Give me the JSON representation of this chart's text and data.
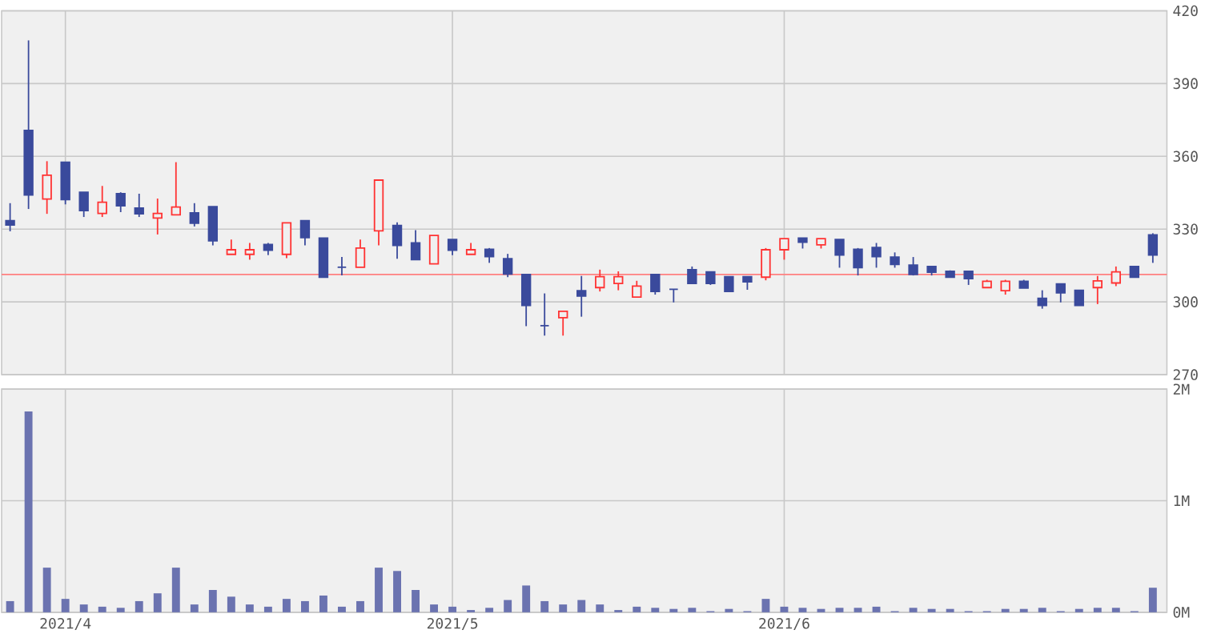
{
  "chart_data": [
    {
      "type": "candlestick",
      "categories": [
        null,
        null,
        null,
        "2021/4",
        null,
        null,
        null,
        null,
        null,
        null,
        null,
        null,
        null,
        null,
        null,
        null,
        null,
        null,
        null,
        null,
        null,
        null,
        null,
        null,
        "2021/5",
        null,
        null,
        null,
        null,
        null,
        null,
        null,
        null,
        null,
        null,
        null,
        null,
        null,
        null,
        null,
        null,
        null,
        "2021/6",
        null,
        null,
        null,
        null,
        null,
        null,
        null,
        null,
        null,
        null,
        null,
        null,
        null,
        null,
        null,
        null,
        null,
        null,
        null,
        null
      ],
      "ohlc": [
        [
          333.5,
          340.7,
          329.1,
          331.7
        ],
        [
          370.7,
          407.8,
          338.3,
          344.1
        ],
        [
          342.4,
          358,
          336.3,
          352.2
        ],
        [
          357.6,
          357.6,
          340.2,
          342.2
        ],
        [
          345.2,
          345.2,
          335,
          337.6
        ],
        [
          336.5,
          347.8,
          335,
          341.1
        ],
        [
          344.6,
          345.2,
          337,
          339.6
        ],
        [
          338.7,
          344.6,
          335,
          336.3
        ],
        [
          334.6,
          342.6,
          327.8,
          336.5
        ],
        [
          335.9,
          357.6,
          335.9,
          339.1
        ],
        [
          336.7,
          340.7,
          331.1,
          332.4
        ],
        [
          339.3,
          339.3,
          323.3,
          325.2
        ],
        [
          319.6,
          325.7,
          319.6,
          321.5
        ],
        [
          319.6,
          324.3,
          317.4,
          321.5
        ],
        [
          323.7,
          324.3,
          319.3,
          321.3
        ],
        [
          319.6,
          332.6,
          318,
          332.6
        ],
        [
          333.5,
          333.5,
          323.3,
          326.5
        ],
        [
          326.3,
          326.3,
          310.2,
          310.2
        ],
        [
          314.3,
          318.5,
          310.9,
          314.3
        ],
        [
          314.3,
          325.7,
          314.3,
          322.2
        ],
        [
          329.3,
          350.2,
          323.3,
          350.2
        ],
        [
          331.5,
          332.8,
          317.8,
          323.3
        ],
        [
          324.3,
          329.6,
          317.4,
          317.4
        ],
        [
          315.7,
          327.4,
          315.7,
          327.4
        ],
        [
          325.7,
          325.7,
          319.3,
          321.3
        ],
        [
          319.6,
          324.3,
          319.6,
          321.5
        ],
        [
          321.7,
          322.2,
          316.1,
          318.7
        ],
        [
          317.8,
          319.8,
          310.2,
          311.5
        ],
        [
          311.3,
          311.3,
          290,
          298.5
        ],
        [
          290.2,
          303.5,
          286.1,
          290.2
        ],
        [
          293.5,
          296.1,
          286.1,
          296.1
        ],
        [
          304.6,
          310.7,
          293.9,
          302.4
        ],
        [
          305.9,
          313.3,
          304.3,
          310.4
        ],
        [
          307.6,
          312.6,
          304.8,
          310.4
        ],
        [
          302,
          308.7,
          302,
          306.5
        ],
        [
          311.3,
          311.3,
          303,
          304.3
        ],
        [
          305.2,
          305.2,
          299.8,
          305.2
        ],
        [
          313.3,
          314.6,
          307.6,
          307.6
        ],
        [
          312.4,
          312.4,
          307,
          307.6
        ],
        [
          310.4,
          310.4,
          304.3,
          304.3
        ],
        [
          310.4,
          310.4,
          305,
          308.3
        ],
        [
          310.2,
          322.2,
          308.9,
          321.5
        ],
        [
          321.5,
          326.1,
          317.4,
          326.1
        ],
        [
          326.3,
          326.3,
          322,
          324.6
        ],
        [
          323.5,
          326.1,
          322,
          326.1
        ],
        [
          325.7,
          325.7,
          314.1,
          319.3
        ],
        [
          321.7,
          322.2,
          310.9,
          314.1
        ],
        [
          322.4,
          324.3,
          314.1,
          318.7
        ],
        [
          318.5,
          320.4,
          314.1,
          315.4
        ],
        [
          315.2,
          318.5,
          310.9,
          311.3
        ],
        [
          314.6,
          314.6,
          310.9,
          312.2
        ],
        [
          312.6,
          313,
          310.2,
          310.2
        ],
        [
          312.6,
          312.6,
          307,
          309.6
        ],
        [
          305.9,
          309.1,
          305.9,
          308.5
        ],
        [
          304.6,
          309.1,
          303,
          308.5
        ],
        [
          308.5,
          309.1,
          305.7,
          305.7
        ],
        [
          301.5,
          304.8,
          297.2,
          298.5
        ],
        [
          307.4,
          307.4,
          299.8,
          303.7
        ],
        [
          304.8,
          304.8,
          298.5,
          298.5
        ],
        [
          305.9,
          310.7,
          299.1,
          308.7
        ],
        [
          307.8,
          314.6,
          306.5,
          312.4
        ],
        [
          314.6,
          314.6,
          310.2,
          310.2
        ],
        [
          327.6,
          328.3,
          316.1,
          319.3
        ]
      ],
      "colors": [
        "#3a4a9c",
        "#3a4a9c",
        "#ff3333",
        "#3a4a9c",
        "#3a4a9c",
        "#ff3333",
        "#3a4a9c",
        "#3a4a9c",
        "#ff3333",
        "#ff3333",
        "#3a4a9c",
        "#3a4a9c",
        "#ff3333",
        "#ff3333",
        "#3a4a9c",
        "#ff3333",
        "#3a4a9c",
        "#3a4a9c",
        "#3a4a9c",
        "#ff3333",
        "#ff3333",
        "#3a4a9c",
        "#3a4a9c",
        "#ff3333",
        "#3a4a9c",
        "#ff3333",
        "#3a4a9c",
        "#3a4a9c",
        "#3a4a9c",
        "#3a4a9c",
        "#ff3333",
        "#3a4a9c",
        "#ff3333",
        "#ff3333",
        "#ff3333",
        "#3a4a9c",
        "#3a4a9c",
        "#3a4a9c",
        "#3a4a9c",
        "#3a4a9c",
        "#3a4a9c",
        "#ff3333",
        "#ff3333",
        "#3a4a9c",
        "#ff3333",
        "#3a4a9c",
        "#3a4a9c",
        "#3a4a9c",
        "#3a4a9c",
        "#3a4a9c",
        "#3a4a9c",
        "#3a4a9c",
        "#3a4a9c",
        "#ff3333",
        "#ff3333",
        "#3a4a9c",
        "#3a4a9c",
        "#3a4a9c",
        "#3a4a9c",
        "#ff3333",
        "#ff3333",
        "#3a4a9c",
        "#3a4a9c"
      ],
      "ylim": [
        270,
        420
      ],
      "yticks": [
        270,
        300,
        330,
        360,
        390,
        420
      ],
      "grid": true,
      "tick_labels": "y",
      "ref_lines": [
        {
          "axis": "y",
          "value": 311.3,
          "color": "#ff8080"
        }
      ]
    },
    {
      "type": "bar",
      "categories": [
        null,
        null,
        null,
        "2021/4",
        null,
        null,
        null,
        null,
        null,
        null,
        null,
        null,
        null,
        null,
        null,
        null,
        null,
        null,
        null,
        null,
        null,
        null,
        null,
        null,
        "2021/5",
        null,
        null,
        null,
        null,
        null,
        null,
        null,
        null,
        null,
        null,
        null,
        null,
        null,
        null,
        null,
        null,
        null,
        "2021/6",
        null,
        null,
        null,
        null,
        null,
        null,
        null,
        null,
        null,
        null,
        null,
        null,
        null,
        null,
        null,
        null,
        null,
        null,
        null,
        null
      ],
      "values": [
        0.1,
        1.8,
        0.4,
        0.12,
        0.07,
        0.05,
        0.04,
        0.1,
        0.17,
        0.4,
        0.07,
        0.2,
        0.14,
        0.07,
        0.05,
        0.12,
        0.1,
        0.15,
        0.05,
        0.1,
        0.4,
        0.37,
        0.2,
        0.07,
        0.05,
        0.02,
        0.04,
        0.11,
        0.24,
        0.1,
        0.07,
        0.11,
        0.07,
        0.02,
        0.05,
        0.04,
        0.03,
        0.04,
        0.01,
        0.03,
        0.01,
        0.12,
        0.05,
        0.04,
        0.03,
        0.04,
        0.04,
        0.05,
        0.01,
        0.04,
        0.03,
        0.03,
        0.01,
        0.01,
        0.03,
        0.03,
        0.04,
        0.01,
        0.03,
        0.04,
        0.04,
        0.01,
        0.22
      ],
      "color": "#6b73b0",
      "ylim": [
        0,
        2
      ],
      "yticks": [
        {
          "value": 0,
          "label": "0M"
        },
        {
          "value": 1,
          "label": "1M"
        },
        {
          "value": 2,
          "label": "2M"
        }
      ],
      "grid": true
    }
  ]
}
